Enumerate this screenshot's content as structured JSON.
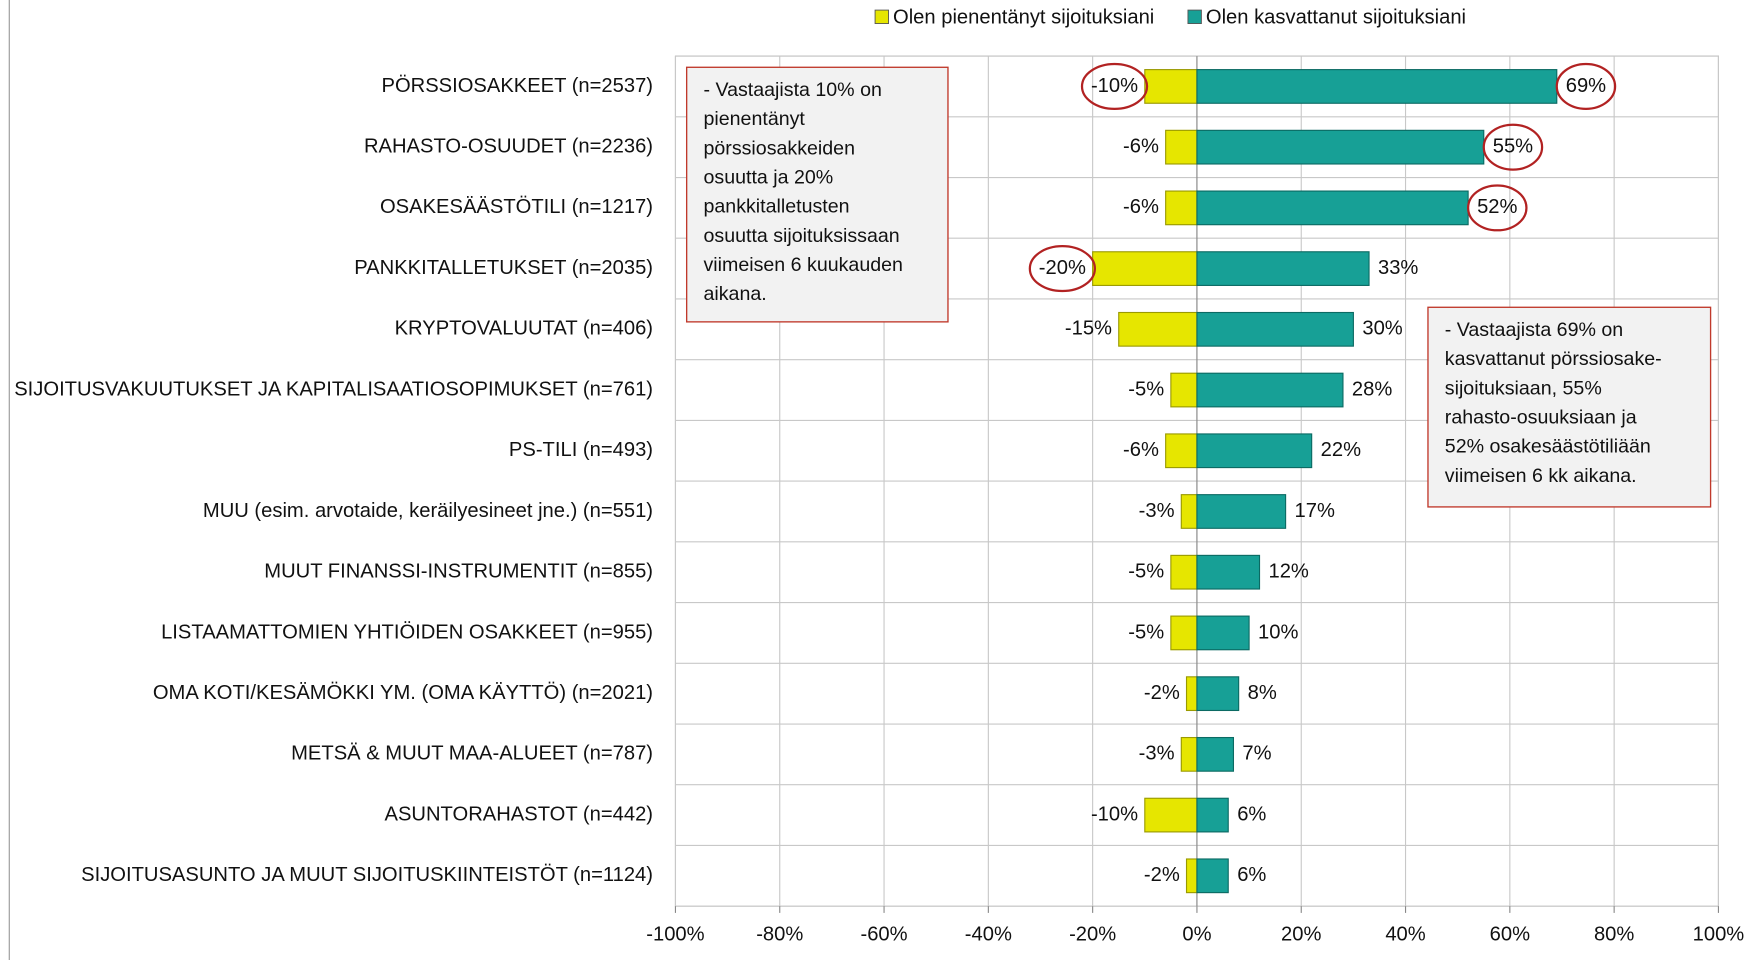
{
  "chart_data": {
    "type": "diverging_bar",
    "categories": [
      "PÖRSSIOSAKKEET (n=2537)",
      "RAHASTO-OSUUDET (n=2236)",
      "OSAKESÄÄSTÖTILI (n=1217)",
      "PANKKITALLETUKSET (n=2035)",
      "KRYPTOVALUUTAT (n=406)",
      "SIJOITUSVAKUUTUKSET JA KAPITALISAATIOSOPIMUKSET (n=761)",
      "PS-TILI (n=493)",
      "MUU (esim. arvotaide, keräilyesineet jne.) (n=551)",
      "MUUT FINANSSI-INSTRUMENTIT (n=855)",
      "LISTAAMATTOMIEN YHTIÖIDEN OSAKKEET (n=955)",
      "OMA KOTI/KESÄMÖKKI YM. (OMA KÄYTTÖ) (n=2021)",
      "METSÄ & MUUT MAA-ALUEET (n=787)",
      "ASUNTORAHASTOT (n=442)",
      "SIJOITUSASUNTO JA MUUT SIJOITUSKIINTEISTÖT (n=1124)"
    ],
    "series": [
      {
        "name": "Olen pienentänyt sijoituksiani",
        "color": "#e6e600",
        "values": [
          -10,
          -6,
          -6,
          -20,
          -15,
          -5,
          -6,
          -3,
          -5,
          -5,
          -2,
          -3,
          -10,
          -2
        ],
        "value_labels": [
          "-10%",
          "-6%",
          "-6%",
          "-20%",
          "-15%",
          "-5%",
          "-6%",
          "-3%",
          "-5%",
          "-5%",
          "-2%",
          "-3%",
          "-10%",
          "-2%"
        ]
      },
      {
        "name": "Olen kasvattanut sijoituksiani",
        "color": "#17a096",
        "values": [
          69,
          55,
          52,
          33,
          30,
          28,
          22,
          17,
          12,
          10,
          8,
          7,
          6,
          6
        ],
        "value_labels": [
          "69%",
          "55%",
          "52%",
          "33%",
          "30%",
          "28%",
          "22%",
          "17%",
          "12%",
          "10%",
          "8%",
          "7%",
          "6%",
          "6%"
        ]
      }
    ],
    "xlim": [
      -100,
      100
    ],
    "xticks": [
      {
        "value": -100,
        "label": "-100%"
      },
      {
        "value": -80,
        "label": "-80%"
      },
      {
        "value": -60,
        "label": "-60%"
      },
      {
        "value": -40,
        "label": "-40%"
      },
      {
        "value": -20,
        "label": "-20%"
      },
      {
        "value": 0,
        "label": "0%"
      },
      {
        "value": 20,
        "label": "20%"
      },
      {
        "value": 40,
        "label": "40%"
      },
      {
        "value": 60,
        "label": "60%"
      },
      {
        "value": 80,
        "label": "80%"
      },
      {
        "value": 100,
        "label": "100%"
      }
    ],
    "grid": true,
    "legend": "top",
    "annotations": [
      {
        "lines": [
          "- Vastaajista 10% on",
          "pienentänyt",
          "pörssiosakkeiden",
          "osuutta ja 20%",
          "pankkitalletusten",
          "osuutta sijoituksissaan",
          "viimeisen 6 kuukauden",
          "aikana."
        ]
      },
      {
        "lines": [
          "- Vastaajista 69% on",
          "kasvattanut pörssiosake-",
          "sijoituksiaan, 55%",
          "rahasto-osuuksiaan ja",
          "52% osakesäästötiliään",
          "viimeisen 6 kk aikana."
        ]
      }
    ]
  }
}
